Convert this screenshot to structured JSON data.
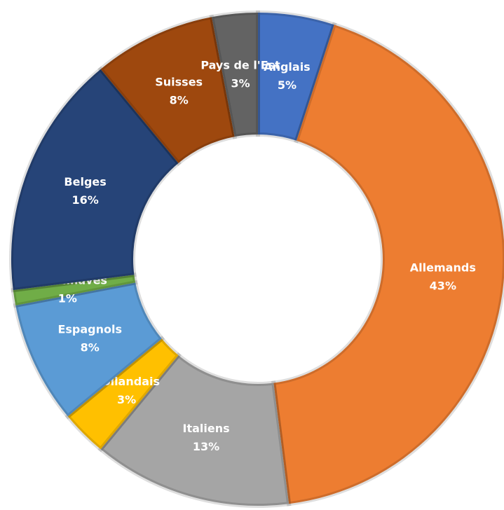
{
  "chart_data": {
    "type": "donut",
    "categories": [
      "Anglais",
      "Allemands",
      "Italiens",
      "Hollandais",
      "Espagnols",
      "Scandinaves",
      "Belges",
      "Suisses",
      "Pays de l'Est"
    ],
    "values": [
      5,
      43,
      13,
      3,
      8,
      1,
      16,
      8,
      3
    ],
    "value_labels": [
      "5%",
      "43%",
      "13%",
      "3%",
      "8%",
      "1%",
      "16%",
      "8%",
      "3%"
    ],
    "colors": [
      "#4472c4",
      "#ed7d31",
      "#a5a5a5",
      "#ffc000",
      "#5b9bd5",
      "#70ad47",
      "#264478",
      "#9e480e",
      "#636363"
    ]
  }
}
